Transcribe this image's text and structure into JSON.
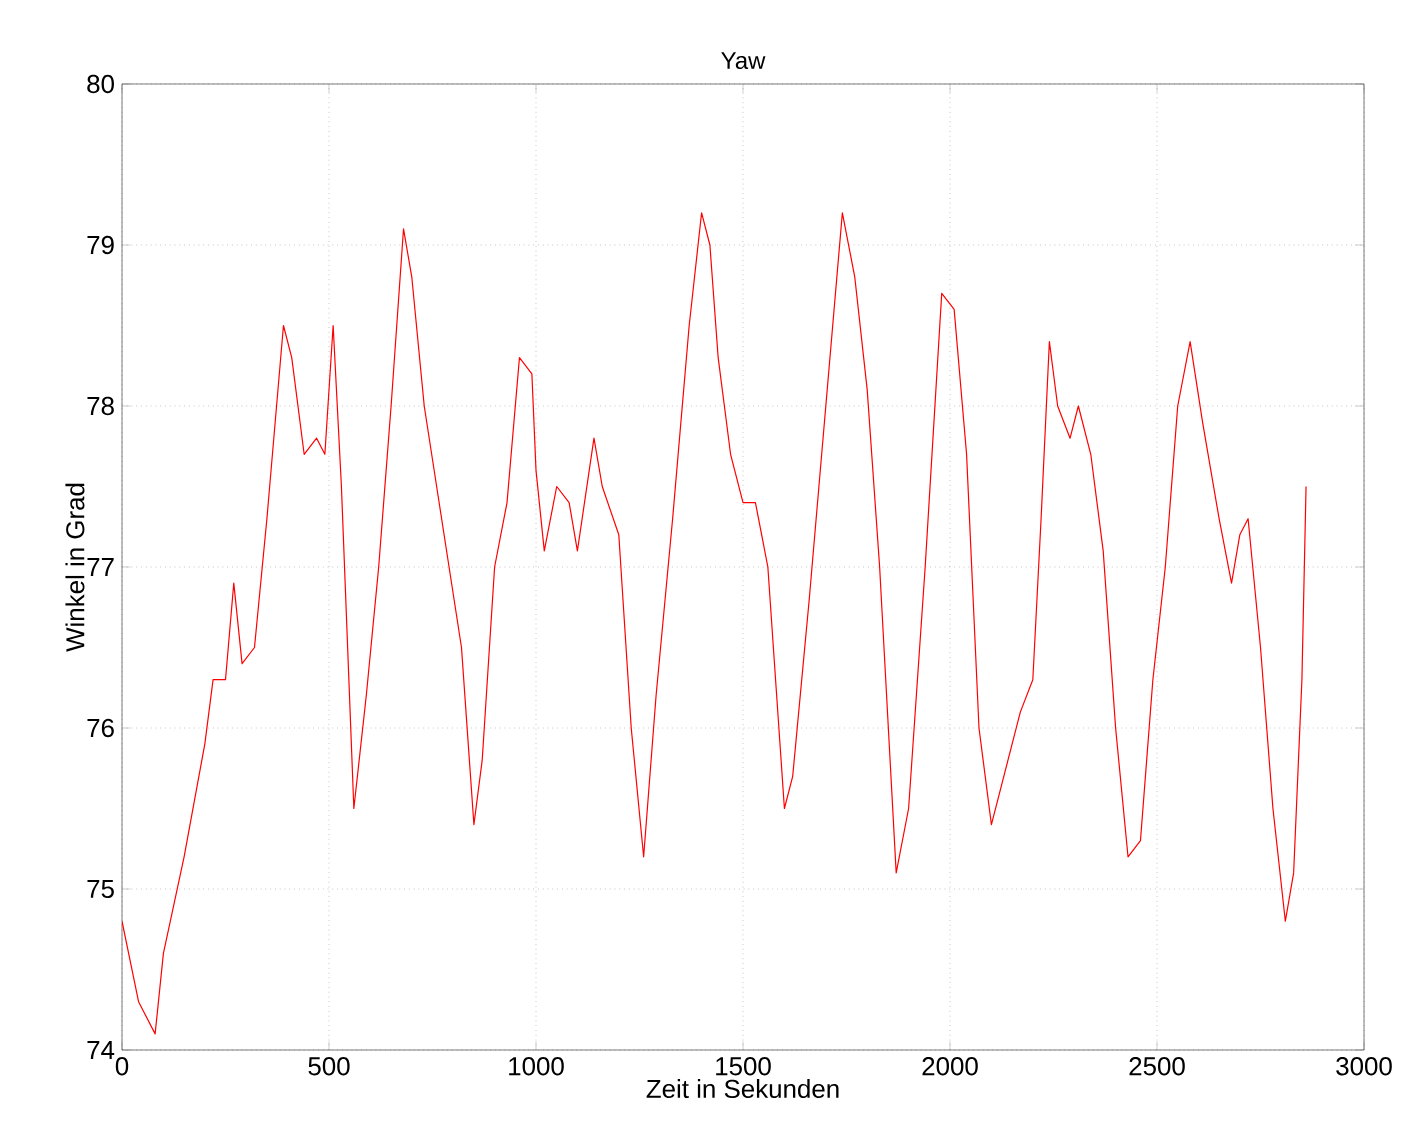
{
  "chart_data": {
    "type": "line",
    "title": "Yaw",
    "xlabel": "Zeit in Sekunden",
    "ylabel": "Winkel in Grad",
    "xlim": [
      0,
      3000
    ],
    "ylim": [
      74,
      80
    ],
    "xticks": [
      0,
      500,
      1000,
      1500,
      2000,
      2500,
      3000
    ],
    "yticks": [
      74,
      75,
      76,
      77,
      78,
      79,
      80
    ],
    "grid": true,
    "line_style": "solid",
    "marker": "none",
    "series": [
      {
        "color": "#ff0000",
        "x": [
          0,
          40,
          80,
          100,
          150,
          200,
          220,
          250,
          270,
          290,
          320,
          350,
          390,
          410,
          440,
          470,
          490,
          510,
          530,
          560,
          590,
          620,
          650,
          680,
          700,
          730,
          760,
          790,
          820,
          850,
          870,
          900,
          930,
          960,
          990,
          1000,
          1020,
          1050,
          1080,
          1100,
          1140,
          1160,
          1200,
          1230,
          1260,
          1290,
          1330,
          1370,
          1400,
          1420,
          1440,
          1470,
          1500,
          1530,
          1560,
          1600,
          1620,
          1660,
          1700,
          1740,
          1770,
          1800,
          1830,
          1870,
          1900,
          1940,
          1980,
          2010,
          2040,
          2070,
          2100,
          2140,
          2170,
          2200,
          2220,
          2240,
          2260,
          2290,
          2310,
          2340,
          2370,
          2400,
          2430,
          2460,
          2490,
          2520,
          2550,
          2580,
          2610,
          2650,
          2680,
          2700,
          2720,
          2750,
          2780,
          2810,
          2830,
          2850,
          2860
        ],
        "values": [
          74.8,
          74.3,
          74.1,
          74.6,
          75.2,
          75.9,
          76.3,
          76.3,
          76.9,
          76.4,
          76.5,
          77.3,
          78.5,
          78.3,
          77.7,
          77.8,
          77.7,
          78.5,
          77.5,
          75.5,
          76.2,
          77.0,
          78.0,
          79.1,
          78.8,
          78.0,
          77.5,
          77.0,
          76.5,
          75.4,
          75.8,
          77.0,
          77.4,
          78.3,
          78.2,
          77.6,
          77.1,
          77.5,
          77.4,
          77.1,
          77.8,
          77.5,
          77.2,
          76.0,
          75.2,
          76.2,
          77.3,
          78.5,
          79.2,
          79.0,
          78.3,
          77.7,
          77.4,
          77.4,
          77.0,
          75.5,
          75.7,
          76.8,
          78.0,
          79.2,
          78.8,
          78.1,
          77.0,
          75.1,
          75.5,
          77.0,
          78.7,
          78.6,
          77.7,
          76.0,
          75.4,
          75.8,
          76.1,
          76.3,
          77.3,
          78.4,
          78.0,
          77.8,
          78.0,
          77.7,
          77.1,
          76.0,
          75.2,
          75.3,
          76.3,
          77.0,
          78.0,
          78.4,
          77.9,
          77.3,
          76.9,
          77.2,
          77.3,
          76.5,
          75.5,
          74.8,
          75.1,
          76.3,
          77.5
        ]
      }
    ]
  }
}
